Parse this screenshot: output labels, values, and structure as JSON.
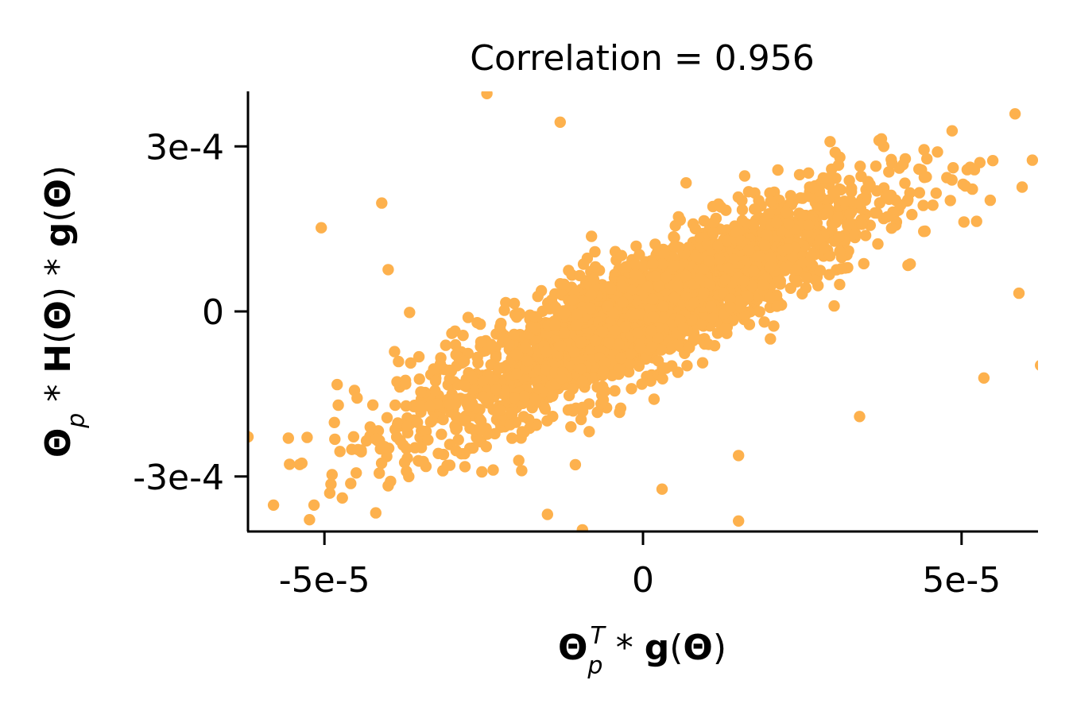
{
  "chart_data": {
    "type": "scatter",
    "title": "Correlation = 0.956",
    "correlation": 0.956,
    "xlabel_parts": [
      "Θ",
      "p",
      "T",
      " * ",
      "g",
      "(",
      "Θ",
      ")"
    ],
    "ylabel_parts": [
      "Θ",
      "p",
      " * ",
      "H",
      "(",
      "Θ",
      ") * ",
      "g",
      "(",
      "Θ",
      ")"
    ],
    "xlim": [
      -6.2e-05,
      6.2e-05
    ],
    "ylim": [
      -0.0004,
      0.0004
    ],
    "x_ticks": [
      -5e-05,
      0,
      5e-05
    ],
    "x_tick_labels": [
      "-5e-5",
      "0",
      "5e-5"
    ],
    "y_ticks": [
      -0.0003,
      0,
      0.0003
    ],
    "y_tick_labels": [
      "-3e-4",
      "0",
      "3e-4"
    ],
    "point_color": "#FDB14D",
    "axis_color": "#000000",
    "n_points": 2500,
    "slope": 5.4,
    "outliers": [
      {
        "x": -5.05e-05,
        "y": 0.000152
      },
      {
        "x": -4.1e-05,
        "y": 0.000197
      },
      {
        "x": -4e-05,
        "y": 7.6e-05
      },
      {
        "x": -4.8e-05,
        "y": -0.000133
      },
      {
        "x": -3.9e-05,
        "y": -7.3e-05
      },
      {
        "x": -3e-05,
        "y": -4e-05
      },
      {
        "x": -2.45e-05,
        "y": 0.000396
      },
      {
        "x": -1.3e-05,
        "y": 0.000344
      },
      {
        "x": 4.55e-05,
        "y": 0.000193
      },
      {
        "x": 5.45e-05,
        "y": 0.000202
      },
      {
        "x": 5.95e-05,
        "y": 0.000226
      },
      {
        "x": 5.9e-05,
        "y": 3.3e-05
      },
      {
        "x": 5.35e-05,
        "y": -0.000121
      },
      {
        "x": 6.24e-05,
        "y": -9.8e-05
      },
      {
        "x": 3.4e-05,
        "y": -0.000191
      },
      {
        "x": 1.5e-05,
        "y": -0.000262
      },
      {
        "x": 1.5e-05,
        "y": -0.000381
      },
      {
        "x": 3e-06,
        "y": -0.000323
      },
      {
        "x": -1.5e-05,
        "y": -0.000369
      },
      {
        "x": -9.5e-06,
        "y": -0.000397
      },
      {
        "x": -6.2e-05,
        "y": -0.000228
      },
      {
        "x": -5.8e-05,
        "y": -0.000352
      },
      {
        "x": -4e-05,
        "y": -0.000317
      },
      {
        "x": 3e-05,
        "y": 1e-05
      },
      {
        "x": 2e-05,
        "y": -5e-05
      }
    ]
  }
}
